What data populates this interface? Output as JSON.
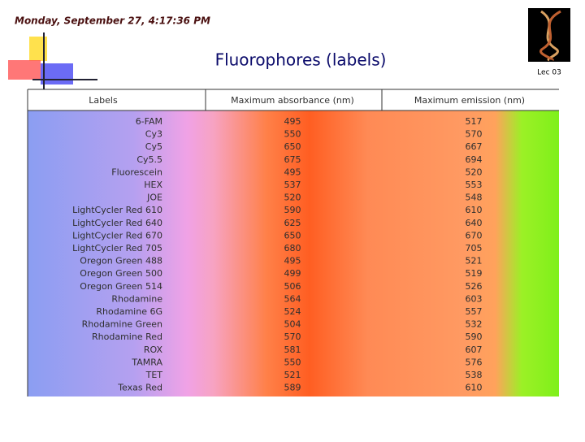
{
  "header": {
    "timestamp": "Monday, September 27, 4:17:36 PM",
    "title": "Fluorophores (labels)",
    "lecture": "Lec 03"
  },
  "table": {
    "columns": [
      "Labels",
      "Maximum absorbance (nm)",
      "Maximum emission (nm)"
    ],
    "rows": [
      [
        "6-FAM",
        495,
        517
      ],
      [
        "Cy3",
        550,
        570
      ],
      [
        "Cy5",
        650,
        667
      ],
      [
        "Cy5.5",
        675,
        694
      ],
      [
        "Fluorescein",
        495,
        520
      ],
      [
        "HEX",
        537,
        553
      ],
      [
        "JOE",
        520,
        548
      ],
      [
        "LightCycler Red 610",
        590,
        610
      ],
      [
        "LightCycler Red 640",
        625,
        640
      ],
      [
        "LightCycler Red 670",
        650,
        670
      ],
      [
        "LightCycler Red 705",
        680,
        705
      ],
      [
        "Oregon Green 488",
        495,
        521
      ],
      [
        "Oregon Green 500",
        499,
        519
      ],
      [
        "Oregon Green 514",
        506,
        526
      ],
      [
        "Rhodamine",
        564,
        603
      ],
      [
        "Rhodamine 6G",
        524,
        557
      ],
      [
        "Rhodamine Green",
        504,
        532
      ],
      [
        "Rhodamine Red",
        570,
        590
      ],
      [
        "ROX",
        581,
        607
      ],
      [
        "TAMRA",
        550,
        576
      ],
      [
        "TET",
        521,
        538
      ],
      [
        "Texas Red",
        589,
        610
      ]
    ]
  }
}
